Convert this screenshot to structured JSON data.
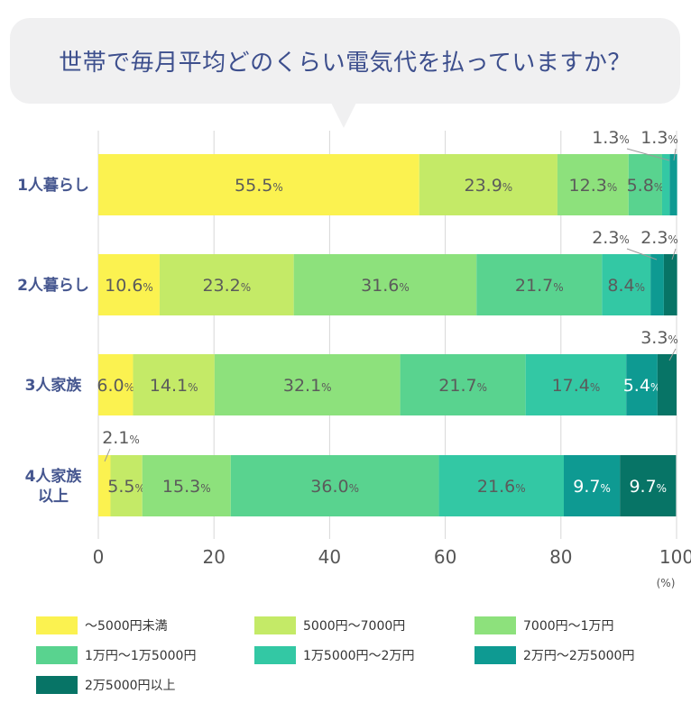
{
  "title": "世帯で毎月平均どのくらい電気代を払っていますか？",
  "colors": [
    "#fbf250",
    "#c4ea67",
    "#8de17c",
    "#59d38f",
    "#33c8a4",
    "#0e9a92",
    "#077466"
  ],
  "chart_data": {
    "type": "bar",
    "orientation": "horizontal",
    "stacked": true,
    "categories": [
      "1人暮らし",
      "2人暮らし",
      "3人家族",
      "4人家族以上"
    ],
    "category_lines": [
      [
        "1人暮らし"
      ],
      [
        "2人暮らし"
      ],
      [
        "3人家族"
      ],
      [
        "4人家族",
        "以上"
      ]
    ],
    "series": [
      {
        "name": "～5000円未満",
        "values": [
          55.5,
          10.6,
          6.0,
          2.1
        ]
      },
      {
        "name": "5000円～7000円",
        "values": [
          23.9,
          23.2,
          14.1,
          5.5
        ]
      },
      {
        "name": "7000円～1万円",
        "values": [
          12.3,
          31.6,
          32.1,
          15.3
        ]
      },
      {
        "name": "1万円～1万5000円",
        "values": [
          5.8,
          21.7,
          21.7,
          36.0
        ]
      },
      {
        "name": "1万5000円～2万円",
        "values": [
          1.3,
          8.4,
          17.4,
          21.6
        ]
      },
      {
        "name": "2万円～2万5000円",
        "values": [
          1.3,
          2.3,
          5.4,
          9.7
        ]
      },
      {
        "name": "2万5000円以上",
        "values": [
          0,
          2.3,
          3.3,
          9.7
        ]
      }
    ],
    "xlim": [
      0,
      100
    ],
    "xticks": [
      "0",
      "20",
      "40",
      "60",
      "80",
      "100"
    ],
    "xunit": "(%)",
    "value_suffix": "%",
    "legend_position": "bottom"
  }
}
